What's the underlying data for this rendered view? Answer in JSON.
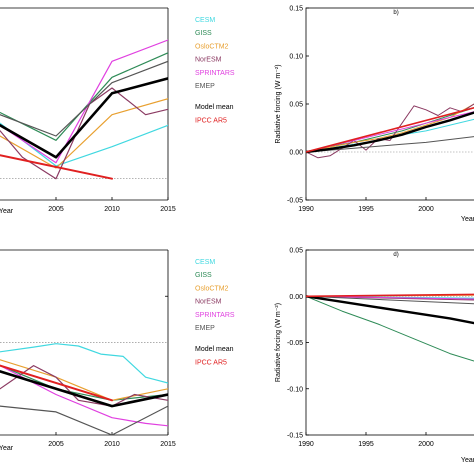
{
  "chart_data": [
    {
      "id": "a",
      "type": "line",
      "panel_label": "",
      "xlabel": "Year",
      "ylabel": "",
      "xlim": [
        2000,
        2015
      ],
      "ylim": [
        -0.02,
        0.16
      ],
      "x_ticks": [
        2005,
        2010,
        2015
      ],
      "y_ticks": [],
      "zero_line": true,
      "legend_placement": "top-right",
      "series": [
        {
          "name": "CESM",
          "color": "#40d8e0",
          "width": 1.2,
          "x": [
            2000,
            2005,
            2010,
            2015
          ],
          "y": [
            0.052,
            0.012,
            0.03,
            0.05
          ]
        },
        {
          "name": "GISS",
          "color": "#2e8b57",
          "width": 1.2,
          "x": [
            2000,
            2005,
            2010,
            2015
          ],
          "y": [
            0.062,
            0.036,
            0.095,
            0.118
          ]
        },
        {
          "name": "OsloCTM2",
          "color": "#e8a030",
          "width": 1.2,
          "x": [
            2000,
            2005,
            2010,
            2015
          ],
          "y": [
            0.04,
            0.01,
            0.06,
            0.075
          ]
        },
        {
          "name": "NorESM",
          "color": "#8b3a62",
          "width": 1.2,
          "x": [
            2000,
            2002,
            2005,
            2008,
            2010,
            2013,
            2015
          ],
          "y": [
            0.045,
            0.02,
            0.0,
            0.07,
            0.085,
            0.06,
            0.065
          ]
        },
        {
          "name": "SPRINTARS",
          "color": "#e040e0",
          "width": 1.2,
          "x": [
            2000,
            2005,
            2010,
            2015
          ],
          "y": [
            0.05,
            0.015,
            0.11,
            0.13
          ]
        },
        {
          "name": "EMEP",
          "color": "#555555",
          "width": 1.2,
          "x": [
            2000,
            2005,
            2010,
            2015
          ],
          "y": [
            0.06,
            0.04,
            0.09,
            0.11
          ]
        },
        {
          "name": "Model mean",
          "color": "#000000",
          "width": 2.6,
          "x": [
            2000,
            2005,
            2010,
            2015
          ],
          "y": [
            0.05,
            0.02,
            0.08,
            0.094
          ]
        },
        {
          "name": "IPCC AR5",
          "color": "#e02020",
          "width": 2.0,
          "x": [
            2000,
            2010
          ],
          "y": [
            0.022,
            0.0
          ]
        }
      ]
    },
    {
      "id": "b",
      "type": "line",
      "panel_label": "b)",
      "xlabel": "Year",
      "ylabel": "Radiative forcing (W m⁻²)",
      "xlim": [
        1990,
        2004
      ],
      "ylim": [
        -0.05,
        0.15
      ],
      "x_ticks": [
        1990,
        1995,
        2000
      ],
      "y_ticks": [
        -0.05,
        0.0,
        0.05,
        0.1,
        0.15
      ],
      "y_tick_labels": [
        "-0.05",
        "0.00",
        "0.05",
        "0.10",
        "0.15"
      ],
      "x_tick_labels": [
        "1990",
        "1995",
        "2000"
      ],
      "zero_line": true,
      "series": [
        {
          "name": "CESM",
          "color": "#40d8e0",
          "width": 1.0,
          "x": [
            1990,
            1992,
            1994,
            1996,
            1998,
            2000,
            2002,
            2004
          ],
          "y": [
            0.0,
            0.004,
            0.008,
            0.012,
            0.018,
            0.022,
            0.028,
            0.034
          ]
        },
        {
          "name": "GISS",
          "color": "#2e8b57",
          "width": 1.0,
          "x": [
            1990,
            1992,
            1994,
            1996,
            1998,
            2000,
            2002,
            2004
          ],
          "y": [
            0.0,
            0.006,
            0.01,
            0.016,
            0.022,
            0.03,
            0.038,
            0.046
          ]
        },
        {
          "name": "OsloCTM2",
          "color": "#e8a030",
          "width": 1.0,
          "x": [
            1990,
            1992,
            1994,
            1996,
            1998,
            2000,
            2002,
            2004
          ],
          "y": [
            0.0,
            0.005,
            0.01,
            0.014,
            0.02,
            0.028,
            0.036,
            0.05
          ]
        },
        {
          "name": "NorESM",
          "color": "#8b3a62",
          "width": 1.0,
          "x": [
            1990,
            1991,
            1992,
            1993,
            1994,
            1995,
            1996,
            1997,
            1998,
            1999,
            2000,
            2001,
            2002,
            2003,
            2004
          ],
          "y": [
            0.0,
            -0.006,
            -0.004,
            0.004,
            0.012,
            0.002,
            0.014,
            0.012,
            0.03,
            0.048,
            0.044,
            0.038,
            0.046,
            0.042,
            0.05
          ]
        },
        {
          "name": "SPRINTARS",
          "color": "#e040e0",
          "width": 1.0,
          "x": [
            1990,
            1992,
            1994,
            1996,
            1998,
            2000,
            2002,
            2004
          ],
          "y": [
            0.0,
            0.006,
            0.012,
            0.018,
            0.024,
            0.03,
            0.036,
            0.042
          ]
        },
        {
          "name": "EMEP",
          "color": "#555555",
          "width": 1.0,
          "x": [
            1990,
            1992,
            1994,
            1996,
            1998,
            2000,
            2002,
            2004
          ],
          "y": [
            0.0,
            0.002,
            0.004,
            0.006,
            0.008,
            0.01,
            0.013,
            0.016
          ]
        },
        {
          "name": "Model mean",
          "color": "#000000",
          "width": 2.4,
          "x": [
            1990,
            1992,
            1994,
            1996,
            1998,
            2000,
            2002,
            2004
          ],
          "y": [
            0.0,
            0.003,
            0.007,
            0.012,
            0.018,
            0.026,
            0.033,
            0.041
          ]
        },
        {
          "name": "IPCC AR5",
          "color": "#e02020",
          "width": 1.6,
          "x": [
            1990,
            2004
          ],
          "y": [
            0.0,
            0.046
          ]
        }
      ]
    },
    {
      "id": "c",
      "type": "line",
      "panel_label": "",
      "xlabel": "Year",
      "ylabel": "",
      "xlim": [
        2000,
        2015
      ],
      "ylim": [
        -0.08,
        0.08
      ],
      "x_ticks": [
        2005,
        2010,
        2015
      ],
      "y_ticks": [
        0.04
      ],
      "zero_line": true,
      "legend_placement": "top-right",
      "series": [
        {
          "name": "CESM",
          "color": "#40d8e0",
          "width": 1.2,
          "x": [
            2000,
            2003,
            2005,
            2007,
            2009,
            2011,
            2013,
            2015
          ],
          "y": [
            -0.008,
            -0.004,
            -0.001,
            -0.003,
            -0.01,
            -0.012,
            -0.03,
            -0.035
          ]
        },
        {
          "name": "GISS",
          "color": "#2e8b57",
          "width": 1.2,
          "x": [
            2000,
            2005,
            2010,
            2015
          ],
          "y": [
            -0.02,
            -0.04,
            -0.05,
            -0.045
          ]
        },
        {
          "name": "OsloCTM2",
          "color": "#e8a030",
          "width": 1.2,
          "x": [
            2000,
            2005,
            2010,
            2015
          ],
          "y": [
            -0.015,
            -0.03,
            -0.05,
            -0.04
          ]
        },
        {
          "name": "NorESM",
          "color": "#8b3a62",
          "width": 1.2,
          "x": [
            2000,
            2003,
            2005,
            2007,
            2010,
            2012,
            2015
          ],
          "y": [
            -0.04,
            -0.02,
            -0.03,
            -0.05,
            -0.055,
            -0.045,
            -0.05
          ]
        },
        {
          "name": "SPRINTARS",
          "color": "#e040e0",
          "width": 1.2,
          "x": [
            2000,
            2005,
            2010,
            2013,
            2015
          ],
          "y": [
            -0.02,
            -0.045,
            -0.065,
            -0.07,
            -0.072
          ]
        },
        {
          "name": "EMEP",
          "color": "#555555",
          "width": 1.2,
          "x": [
            2000,
            2005,
            2010,
            2015
          ],
          "y": [
            -0.055,
            -0.06,
            -0.08,
            -0.055
          ]
        },
        {
          "name": "Model mean",
          "color": "#000000",
          "width": 2.6,
          "x": [
            2000,
            2005,
            2010,
            2015
          ],
          "y": [
            -0.025,
            -0.04,
            -0.055,
            -0.045
          ]
        },
        {
          "name": "IPCC AR5",
          "color": "#e02020",
          "width": 2.0,
          "x": [
            2000,
            2010
          ],
          "y": [
            -0.02,
            -0.05
          ]
        }
      ]
    },
    {
      "id": "d",
      "type": "line",
      "panel_label": "d)",
      "xlabel": "Year",
      "ylabel": "Radiative forcing (W m⁻²)",
      "xlim": [
        1990,
        2004
      ],
      "ylim": [
        -0.15,
        0.05
      ],
      "x_ticks": [
        1990,
        1995,
        2000
      ],
      "y_ticks": [
        -0.15,
        -0.1,
        -0.05,
        0.0,
        0.05
      ],
      "y_tick_labels": [
        "-0.15",
        "-0.10",
        "-0.05",
        "0.00",
        "0.05"
      ],
      "x_tick_labels": [
        "1990",
        "1995",
        "2000"
      ],
      "zero_line": true,
      "series": [
        {
          "name": "CESM",
          "color": "#40d8e0",
          "width": 1.0,
          "x": [
            1990,
            2004
          ],
          "y": [
            0.0,
            -0.002
          ]
        },
        {
          "name": "GISS",
          "color": "#2e8b57",
          "width": 1.0,
          "x": [
            1990,
            1993,
            1996,
            1999,
            2002,
            2004
          ],
          "y": [
            0.0,
            -0.016,
            -0.03,
            -0.046,
            -0.062,
            -0.07
          ]
        },
        {
          "name": "OsloCTM2",
          "color": "#e8a030",
          "width": 1.0,
          "x": [
            1990,
            2004
          ],
          "y": [
            0.0,
            0.001
          ]
        },
        {
          "name": "NorESM",
          "color": "#8b3a62",
          "width": 1.0,
          "x": [
            1990,
            2004
          ],
          "y": [
            0.0,
            -0.004
          ]
        },
        {
          "name": "SPRINTARS",
          "color": "#e040e0",
          "width": 1.0,
          "x": [
            1990,
            2004
          ],
          "y": [
            0.0,
            -0.003
          ]
        },
        {
          "name": "EMEP",
          "color": "#555555",
          "width": 1.0,
          "x": [
            1990,
            2004
          ],
          "y": [
            0.0,
            -0.008
          ]
        },
        {
          "name": "Model mean",
          "color": "#000000",
          "width": 2.4,
          "x": [
            1990,
            1993,
            1996,
            1999,
            2002,
            2004
          ],
          "y": [
            0.0,
            -0.006,
            -0.012,
            -0.018,
            -0.024,
            -0.029
          ]
        },
        {
          "name": "IPCC AR5",
          "color": "#e02020",
          "width": 1.6,
          "x": [
            1990,
            2004
          ],
          "y": [
            0.0,
            0.002
          ]
        }
      ]
    }
  ],
  "legend_a": [
    {
      "label": "CESM",
      "color": "#40d8e0"
    },
    {
      "label": "GISS",
      "color": "#2e8b57"
    },
    {
      "label": "OsloCTM2",
      "color": "#e8a030"
    },
    {
      "label": "NorESM",
      "color": "#8b3a62"
    },
    {
      "label": "SPRINTARS",
      "color": "#e040e0"
    },
    {
      "label": "EMEP",
      "color": "#555555"
    },
    {
      "label": "Model mean",
      "color": "#000000"
    },
    {
      "label": "IPCC AR5",
      "color": "#e02020"
    }
  ],
  "legend_c": [
    {
      "label": "CESM",
      "color": "#40d8e0"
    },
    {
      "label": "GISS",
      "color": "#2e8b57"
    },
    {
      "label": "OsloCTM2",
      "color": "#e8a030"
    },
    {
      "label": "NorESM",
      "color": "#8b3a62"
    },
    {
      "label": "SPRINTARS",
      "color": "#e040e0"
    },
    {
      "label": "EMEP",
      "color": "#555555"
    },
    {
      "label": "Model mean",
      "color": "#000000"
    },
    {
      "label": "IPCC AR5",
      "color": "#e02020"
    }
  ],
  "clipped_labels": {
    "a_xlabel": "Year",
    "b_xlabel": "Year",
    "c_xlabel": "Year",
    "d_xlabel": "Year"
  }
}
